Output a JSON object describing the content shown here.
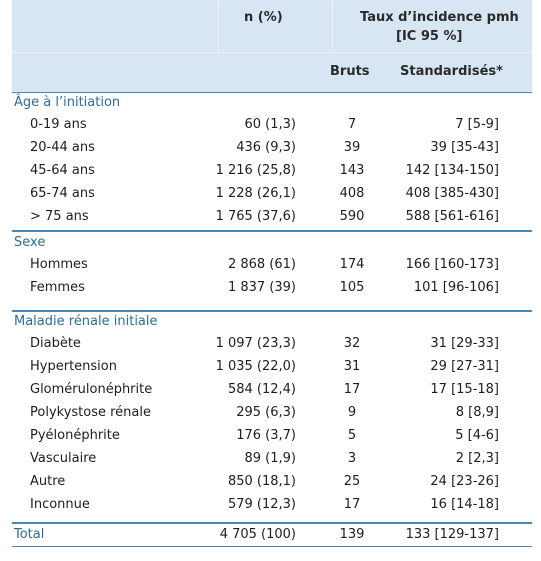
{
  "header": {
    "col_n": "n (%)",
    "col_taux_line1": "Taux d’incidence pmh",
    "col_taux_line2": "[IC 95 %]",
    "col_bruts": "Bruts",
    "col_standardises": "Standardisés*"
  },
  "sections": [
    {
      "title": "Âge à l’initiation",
      "rows": [
        {
          "label": "0-19 ans",
          "n": "60 (1,3)",
          "bruts": "7",
          "std": "7 [5-9]"
        },
        {
          "label": "20-44 ans",
          "n": "436 (9,3)",
          "bruts": "39",
          "std": "39 [35-43]"
        },
        {
          "label": "45-64 ans",
          "n": "1 216 (25,8)",
          "bruts": "143",
          "std": "142 [134-150]"
        },
        {
          "label": "65-74 ans",
          "n": "1 228 (26,1)",
          "bruts": "408",
          "std": "408 [385-430]"
        },
        {
          "label": "> 75 ans",
          "n": "1 765 (37,6)",
          "bruts": "590",
          "std": "588 [561-616]"
        }
      ]
    },
    {
      "title": "Sexe",
      "rows": [
        {
          "label": "Hommes",
          "n": "2 868 (61)",
          "bruts": "174",
          "std": "166 [160-173]"
        },
        {
          "label": "Femmes",
          "n": "1 837 (39)",
          "bruts": "105",
          "std": "101 [96-106]"
        }
      ]
    },
    {
      "title": "Maladie rénale initiale",
      "rows": [
        {
          "label": "Diabète",
          "n": "1 097 (23,3)",
          "bruts": "32",
          "std": "31 [29-33]"
        },
        {
          "label": "Hypertension",
          "n": "1 035 (22,0)",
          "bruts": "31",
          "std": "29 [27-31]"
        },
        {
          "label": "Glomérulonéphrite",
          "n": "584 (12,4)",
          "bruts": "17",
          "std": "17 [15-18]"
        },
        {
          "label": "Polykystose rénale",
          "n": "295 (6,3)",
          "bruts": "9",
          "std": "8 [8,9]"
        },
        {
          "label": "Pyélonéphrite",
          "n": "176 (3,7)",
          "bruts": "5",
          "std": "5 [4-6]"
        },
        {
          "label": "Vasculaire",
          "n": "89 (1,9)",
          "bruts": "3",
          "std": "2 [2,3]"
        },
        {
          "label": "Autre",
          "n": "850 (18,1)",
          "bruts": "25",
          "std": "24 [23-26]"
        },
        {
          "label": "Inconnue",
          "n": "579 (12,3)",
          "bruts": "17",
          "std": "16 [14-18]"
        }
      ]
    }
  ],
  "total": {
    "label": "Total",
    "n": "4 705 (100)",
    "bruts": "139",
    "std": "133 [129-137]"
  },
  "colors": {
    "header_bg": "#d7e6f2",
    "accent": "#2c6e98",
    "rule": "#4a88ba"
  }
}
